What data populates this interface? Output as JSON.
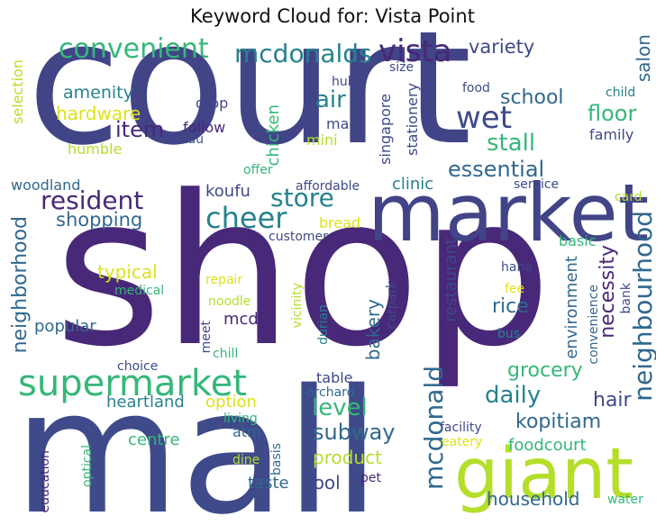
{
  "title": "Keyword Cloud for: Vista Point",
  "palette": {
    "deep_purple": "#482878",
    "navy": "#3e4a89",
    "indigo": "#414487",
    "blue": "#31688e",
    "teal": "#26828e",
    "sea": "#1f9e89",
    "green": "#35b779",
    "light_green": "#6ece58",
    "lime": "#b5de2b",
    "yellow": "#dde318"
  },
  "words": {
    "court": "court",
    "shop": "shop",
    "mall": "mall",
    "market": "market",
    "giant": "giant",
    "supermarket": "supermarket",
    "vista": "vista",
    "convenient": "convenient",
    "mcdonalds": "mcdonalds",
    "wet": "wet",
    "cheer": "cheer",
    "resident": "resident",
    "store": "store",
    "neighbourhood": "neighbourhood",
    "neighborhood": "neighborhood",
    "mcdonald": "mcdonald",
    "kopitiam": "kopitiam",
    "daily": "daily",
    "grocery": "grocery",
    "level": "level",
    "subway": "subway",
    "household": "household",
    "item": "item",
    "stall": "stall",
    "floor": "floor",
    "school": "school",
    "essential": "essential",
    "shopping": "shopping",
    "amenity": "amenity",
    "hardware": "hardware",
    "variety": "variety",
    "air": "air",
    "salon": "salon",
    "koufu": "koufu",
    "typical": "typical",
    "popular": "popular",
    "bakery": "bakery",
    "rice": "rice",
    "necessity": "necessity",
    "restaurant": "restaurant",
    "option": "option",
    "hair": "hair",
    "product": "product",
    "pool": "pool",
    "centre": "centre",
    "taste": "taste",
    "heartland": "heartland",
    "mcd": "mcd",
    "chicken": "chicken",
    "mini": "mini",
    "mac": "mac",
    "hub": "hub",
    "singapore": "singapore",
    "stationery": "stationery",
    "size": "size",
    "food": "food",
    "child": "child",
    "family": "family",
    "selection": "selection",
    "humble": "humble",
    "drop": "drop",
    "follow": "follow",
    "tau": "tau",
    "woodland": "woodland",
    "offer": "offer",
    "affordable": "affordable",
    "clinic": "clinic",
    "service": "service",
    "card": "card",
    "bread": "bread",
    "customer": "customer",
    "basic": "basic",
    "environment": "environment",
    "convenience": "convenience",
    "bank": "bank",
    "haha": "haha",
    "fee": "fee",
    "bus": "bus",
    "medical": "medical",
    "repair": "repair",
    "noodle": "noodle",
    "vicinity": "vicinity",
    "durian": "durian",
    "carpark": "carpark",
    "meet": "meet",
    "chill": "chill",
    "choice": "choice",
    "table": "table",
    "orchard": "orchard",
    "living": "living",
    "atm": "atm",
    "dine": "dine",
    "basis": "basis",
    "eatery": "eatery",
    "facility": "facility",
    "foodcourt": "foodcourt",
    "pet": "pet",
    "water": "water",
    "education": "education",
    "optical": "optical"
  }
}
